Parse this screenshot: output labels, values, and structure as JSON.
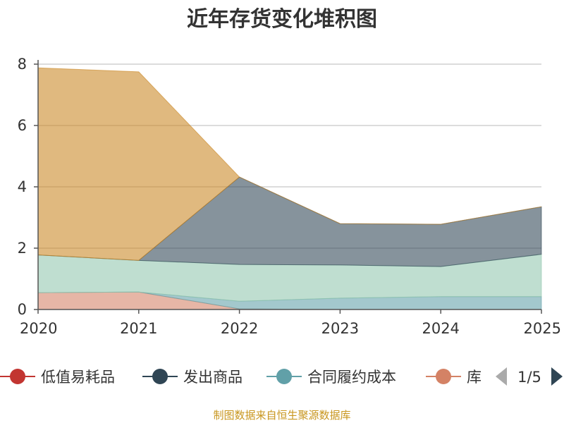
{
  "chart_data": {
    "type": "area",
    "stacked": true,
    "title": "近年存货变化堆积图",
    "xlabel": "",
    "ylabel": "",
    "x": [
      "2020",
      "2021",
      "2022",
      "2023",
      "2024",
      "2025"
    ],
    "ylim": [
      0,
      8
    ],
    "yticks": [
      0,
      2,
      4,
      6,
      8
    ],
    "grid": true,
    "legend_position": "bottom",
    "series": [
      {
        "name": "低值易耗品",
        "color": "#c23531",
        "values": [
          0,
          0,
          0,
          0,
          0,
          0
        ]
      },
      {
        "name": "库",
        "color": "#d48265",
        "values": [
          0.55,
          0.57,
          0.02,
          0,
          0,
          0
        ]
      },
      {
        "name": "合同履约成本",
        "color": "#61a0a8",
        "values": [
          0,
          0,
          0.25,
          0.37,
          0.42,
          0.42
        ]
      },
      {
        "name": "",
        "color": "#91c7ae",
        "values": [
          1.23,
          1.03,
          1.2,
          1.08,
          0.98,
          1.38
        ]
      },
      {
        "name": "发出商品",
        "color": "#2f4554",
        "values": [
          0,
          0,
          2.85,
          1.35,
          1.38,
          1.55
        ]
      },
      {
        "name": "",
        "color": "#ca8622",
        "values": [
          6.1,
          6.15,
          0,
          0,
          0,
          0
        ]
      }
    ]
  },
  "legend": {
    "items": [
      {
        "label": "低值易耗品",
        "color": "#c23531"
      },
      {
        "label": "发出商品",
        "color": "#2f4554"
      },
      {
        "label": "合同履约成本",
        "color": "#61a0a8"
      },
      {
        "label": "库",
        "color": "#d48265"
      }
    ],
    "pager": "1/5"
  },
  "source_text": "制图数据来自恒生聚源数据库"
}
